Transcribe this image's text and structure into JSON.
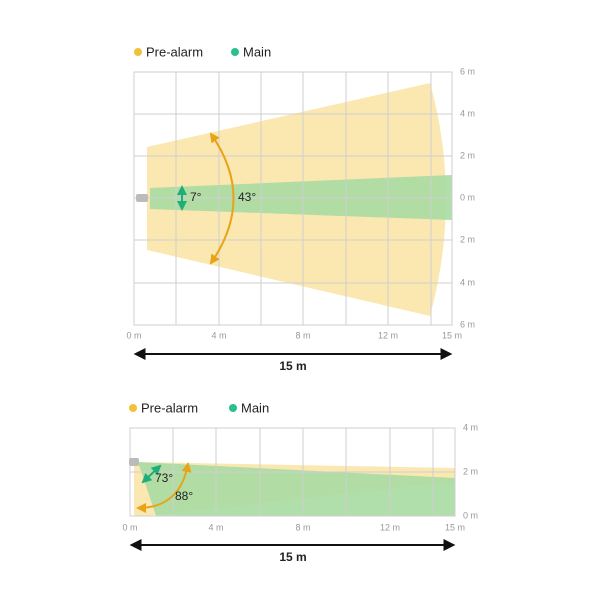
{
  "panels": [
    {
      "legend": [
        "Pre-alarm",
        "Main"
      ],
      "y_labels": [
        "6 m",
        "4 m",
        "2 m",
        "0 m",
        "2 m",
        "4 m",
        "6 m"
      ],
      "x_labels": [
        "0 m",
        "4 m",
        "8 m",
        "12 m",
        "15 m"
      ],
      "angles": [
        "7°",
        "43°"
      ],
      "distance": "15 m"
    },
    {
      "legend": [
        "Pre-alarm",
        "Main"
      ],
      "y_labels": [
        "4 m",
        "2 m",
        "0 m"
      ],
      "x_labels": [
        "0 m",
        "4 m",
        "8 m",
        "12 m",
        "15 m"
      ],
      "angles": [
        "73°",
        "88°"
      ],
      "distance": "15 m"
    }
  ]
}
